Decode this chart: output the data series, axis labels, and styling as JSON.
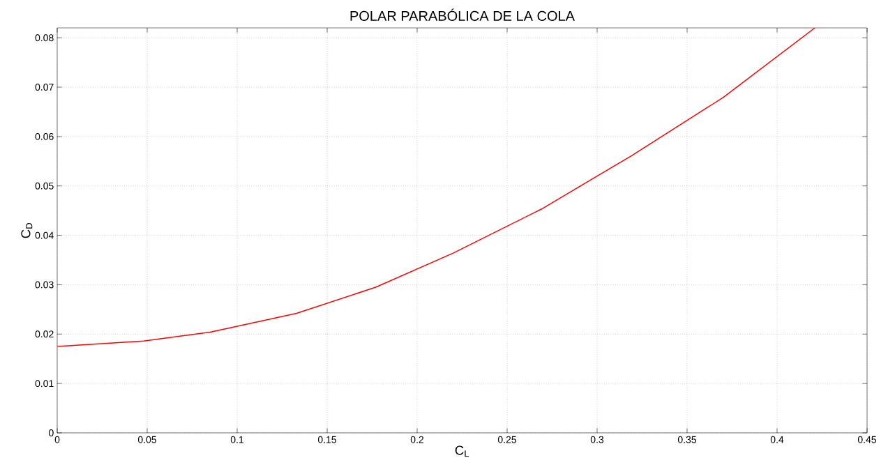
{
  "chart_data": {
    "type": "line",
    "title": "POLAR PARABÓLICA DE LA COLA",
    "xlabel": "C$_{L}$",
    "ylabel": "C$_{D}$",
    "x": [
      0,
      0.048,
      0.085,
      0.133,
      0.177,
      0.22,
      0.269,
      0.319,
      0.37,
      0.421
    ],
    "series": [
      {
        "color": "#ff0000",
        "values": [
          0.0175,
          0.0186,
          0.0204,
          0.0242,
          0.0295,
          0.0364,
          0.0453,
          0.0561,
          0.0679,
          0.082
        ]
      }
    ],
    "xlim": [
      0,
      0.45
    ],
    "ylim": [
      0,
      0.082
    ],
    "xticks": [
      0,
      0.05,
      0.1,
      0.15,
      0.2,
      0.25,
      0.3,
      0.35,
      0.4,
      0.45
    ],
    "yticks": [
      0,
      0.01,
      0.02,
      0.03,
      0.04,
      0.05,
      0.06,
      0.07,
      0.08
    ],
    "grid": true,
    "marker": "none",
    "line_style": "solid"
  }
}
